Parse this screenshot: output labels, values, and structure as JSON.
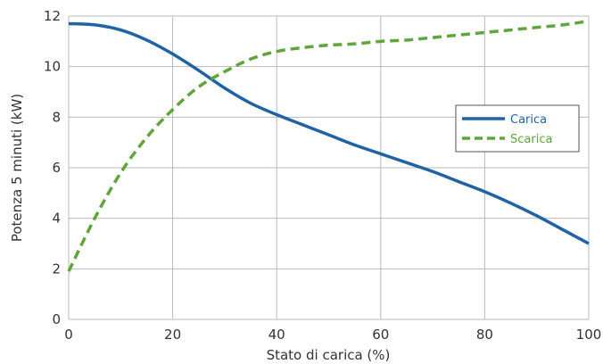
{
  "chart_data": {
    "type": "line",
    "title": "",
    "xlabel": "Stato di carica (%)",
    "ylabel": "Potenza 5 minuti (kW)",
    "xlim": [
      0,
      100
    ],
    "ylim": [
      0,
      12
    ],
    "x_ticks": [
      0,
      20,
      40,
      60,
      80,
      100
    ],
    "y_ticks": [
      0,
      2,
      4,
      6,
      8,
      10,
      12
    ],
    "grid": true,
    "legend_position": "right",
    "series": [
      {
        "name": "Carica",
        "color": "#1f63a6",
        "style": "solid",
        "x": [
          0,
          5,
          10,
          15,
          20,
          25,
          30,
          35,
          40,
          45,
          50,
          55,
          60,
          65,
          70,
          75,
          80,
          85,
          90,
          95,
          100
        ],
        "y": [
          11.7,
          11.65,
          11.45,
          11.05,
          10.5,
          9.85,
          9.15,
          8.55,
          8.1,
          7.7,
          7.3,
          6.9,
          6.55,
          6.2,
          5.85,
          5.45,
          5.05,
          4.6,
          4.1,
          3.55,
          3.0
        ]
      },
      {
        "name": "Scarica",
        "color": "#5ea63a",
        "style": "dashed",
        "x": [
          0,
          5,
          10,
          15,
          20,
          25,
          30,
          35,
          40,
          45,
          50,
          55,
          60,
          65,
          70,
          75,
          80,
          85,
          90,
          95,
          100
        ],
        "y": [
          1.9,
          4.0,
          5.8,
          7.2,
          8.3,
          9.2,
          9.8,
          10.3,
          10.6,
          10.75,
          10.85,
          10.9,
          11.0,
          11.05,
          11.15,
          11.25,
          11.35,
          11.45,
          11.55,
          11.65,
          11.8
        ]
      }
    ]
  }
}
